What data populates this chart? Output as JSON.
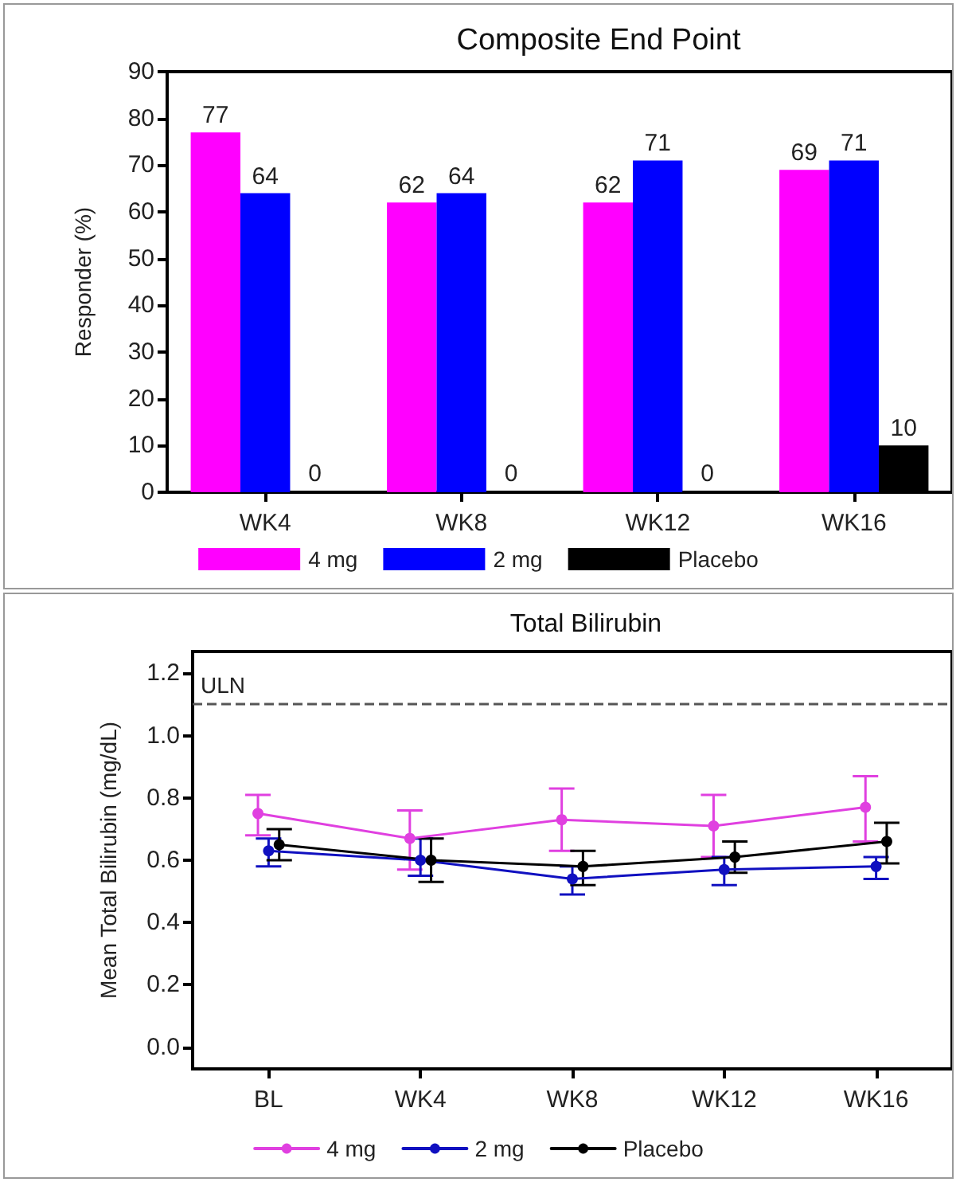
{
  "chart_data": [
    {
      "type": "bar",
      "title": "Composite End Point",
      "ylabel": "Responder (%)",
      "categories": [
        "WK4",
        "WK8",
        "WK12",
        "WK16"
      ],
      "series": [
        {
          "name": "4 mg",
          "color": "#ff00ff",
          "values": [
            77,
            62,
            62,
            69
          ]
        },
        {
          "name": "2 mg",
          "color": "#0000ff",
          "values": [
            64,
            64,
            71,
            71
          ]
        },
        {
          "name": "Placebo",
          "color": "#000000",
          "values": [
            0,
            0,
            0,
            10
          ]
        }
      ],
      "ylim": [
        0,
        90
      ],
      "yticks": [
        0,
        10,
        20,
        30,
        40,
        50,
        60,
        70,
        80,
        90
      ],
      "data_labels": true,
      "grid": false,
      "legend": "bottom"
    },
    {
      "type": "line",
      "title": "Total Bilirubin",
      "ylabel": "Mean Total Bilirubin (mg/dL)",
      "categories": [
        "BL",
        "WK4",
        "WK8",
        "WK12",
        "WK16"
      ],
      "series": [
        {
          "name": "4 mg",
          "color": "#e040e0",
          "values": [
            0.75,
            0.67,
            0.73,
            0.71,
            0.77
          ],
          "errors": [
            [
              0.68,
              0.81
            ],
            [
              0.57,
              0.76
            ],
            [
              0.63,
              0.83
            ],
            [
              0.61,
              0.81
            ],
            [
              0.66,
              0.87
            ]
          ]
        },
        {
          "name": "2 mg",
          "color": "#1010c0",
          "values": [
            0.63,
            0.6,
            0.54,
            0.57,
            0.58
          ],
          "errors": [
            [
              0.58,
              0.67
            ],
            [
              0.55,
              0.67
            ],
            [
              0.49,
              0.58
            ],
            [
              0.52,
              0.61
            ],
            [
              0.54,
              0.61
            ]
          ]
        },
        {
          "name": "Placebo",
          "color": "#000000",
          "values": [
            0.65,
            0.6,
            0.58,
            0.61,
            0.66
          ],
          "errors": [
            [
              0.6,
              0.7
            ],
            [
              0.53,
              0.67
            ],
            [
              0.52,
              0.63
            ],
            [
              0.56,
              0.66
            ],
            [
              0.59,
              0.72
            ]
          ]
        }
      ],
      "ylim": [
        -0.07,
        1.27
      ],
      "yticks": [
        {
          "value": 0,
          "label": "0.0"
        },
        {
          "value": 0.2,
          "label": "0.2"
        },
        {
          "value": 0.4,
          "label": "0.4"
        },
        {
          "value": 0.6,
          "label": "0.6"
        },
        {
          "value": 0.8,
          "label": "0.8"
        },
        {
          "value": 1,
          "label": "1.0"
        },
        {
          "value": 1.2,
          "label": "1.2"
        }
      ],
      "ref_lines": [
        {
          "axis": "y",
          "value": 1.1,
          "label": "ULN",
          "line_style": "dashed",
          "color": "#555555"
        }
      ],
      "marker": "circle",
      "line_style": "solid",
      "grid": false,
      "legend": "bottom"
    }
  ]
}
